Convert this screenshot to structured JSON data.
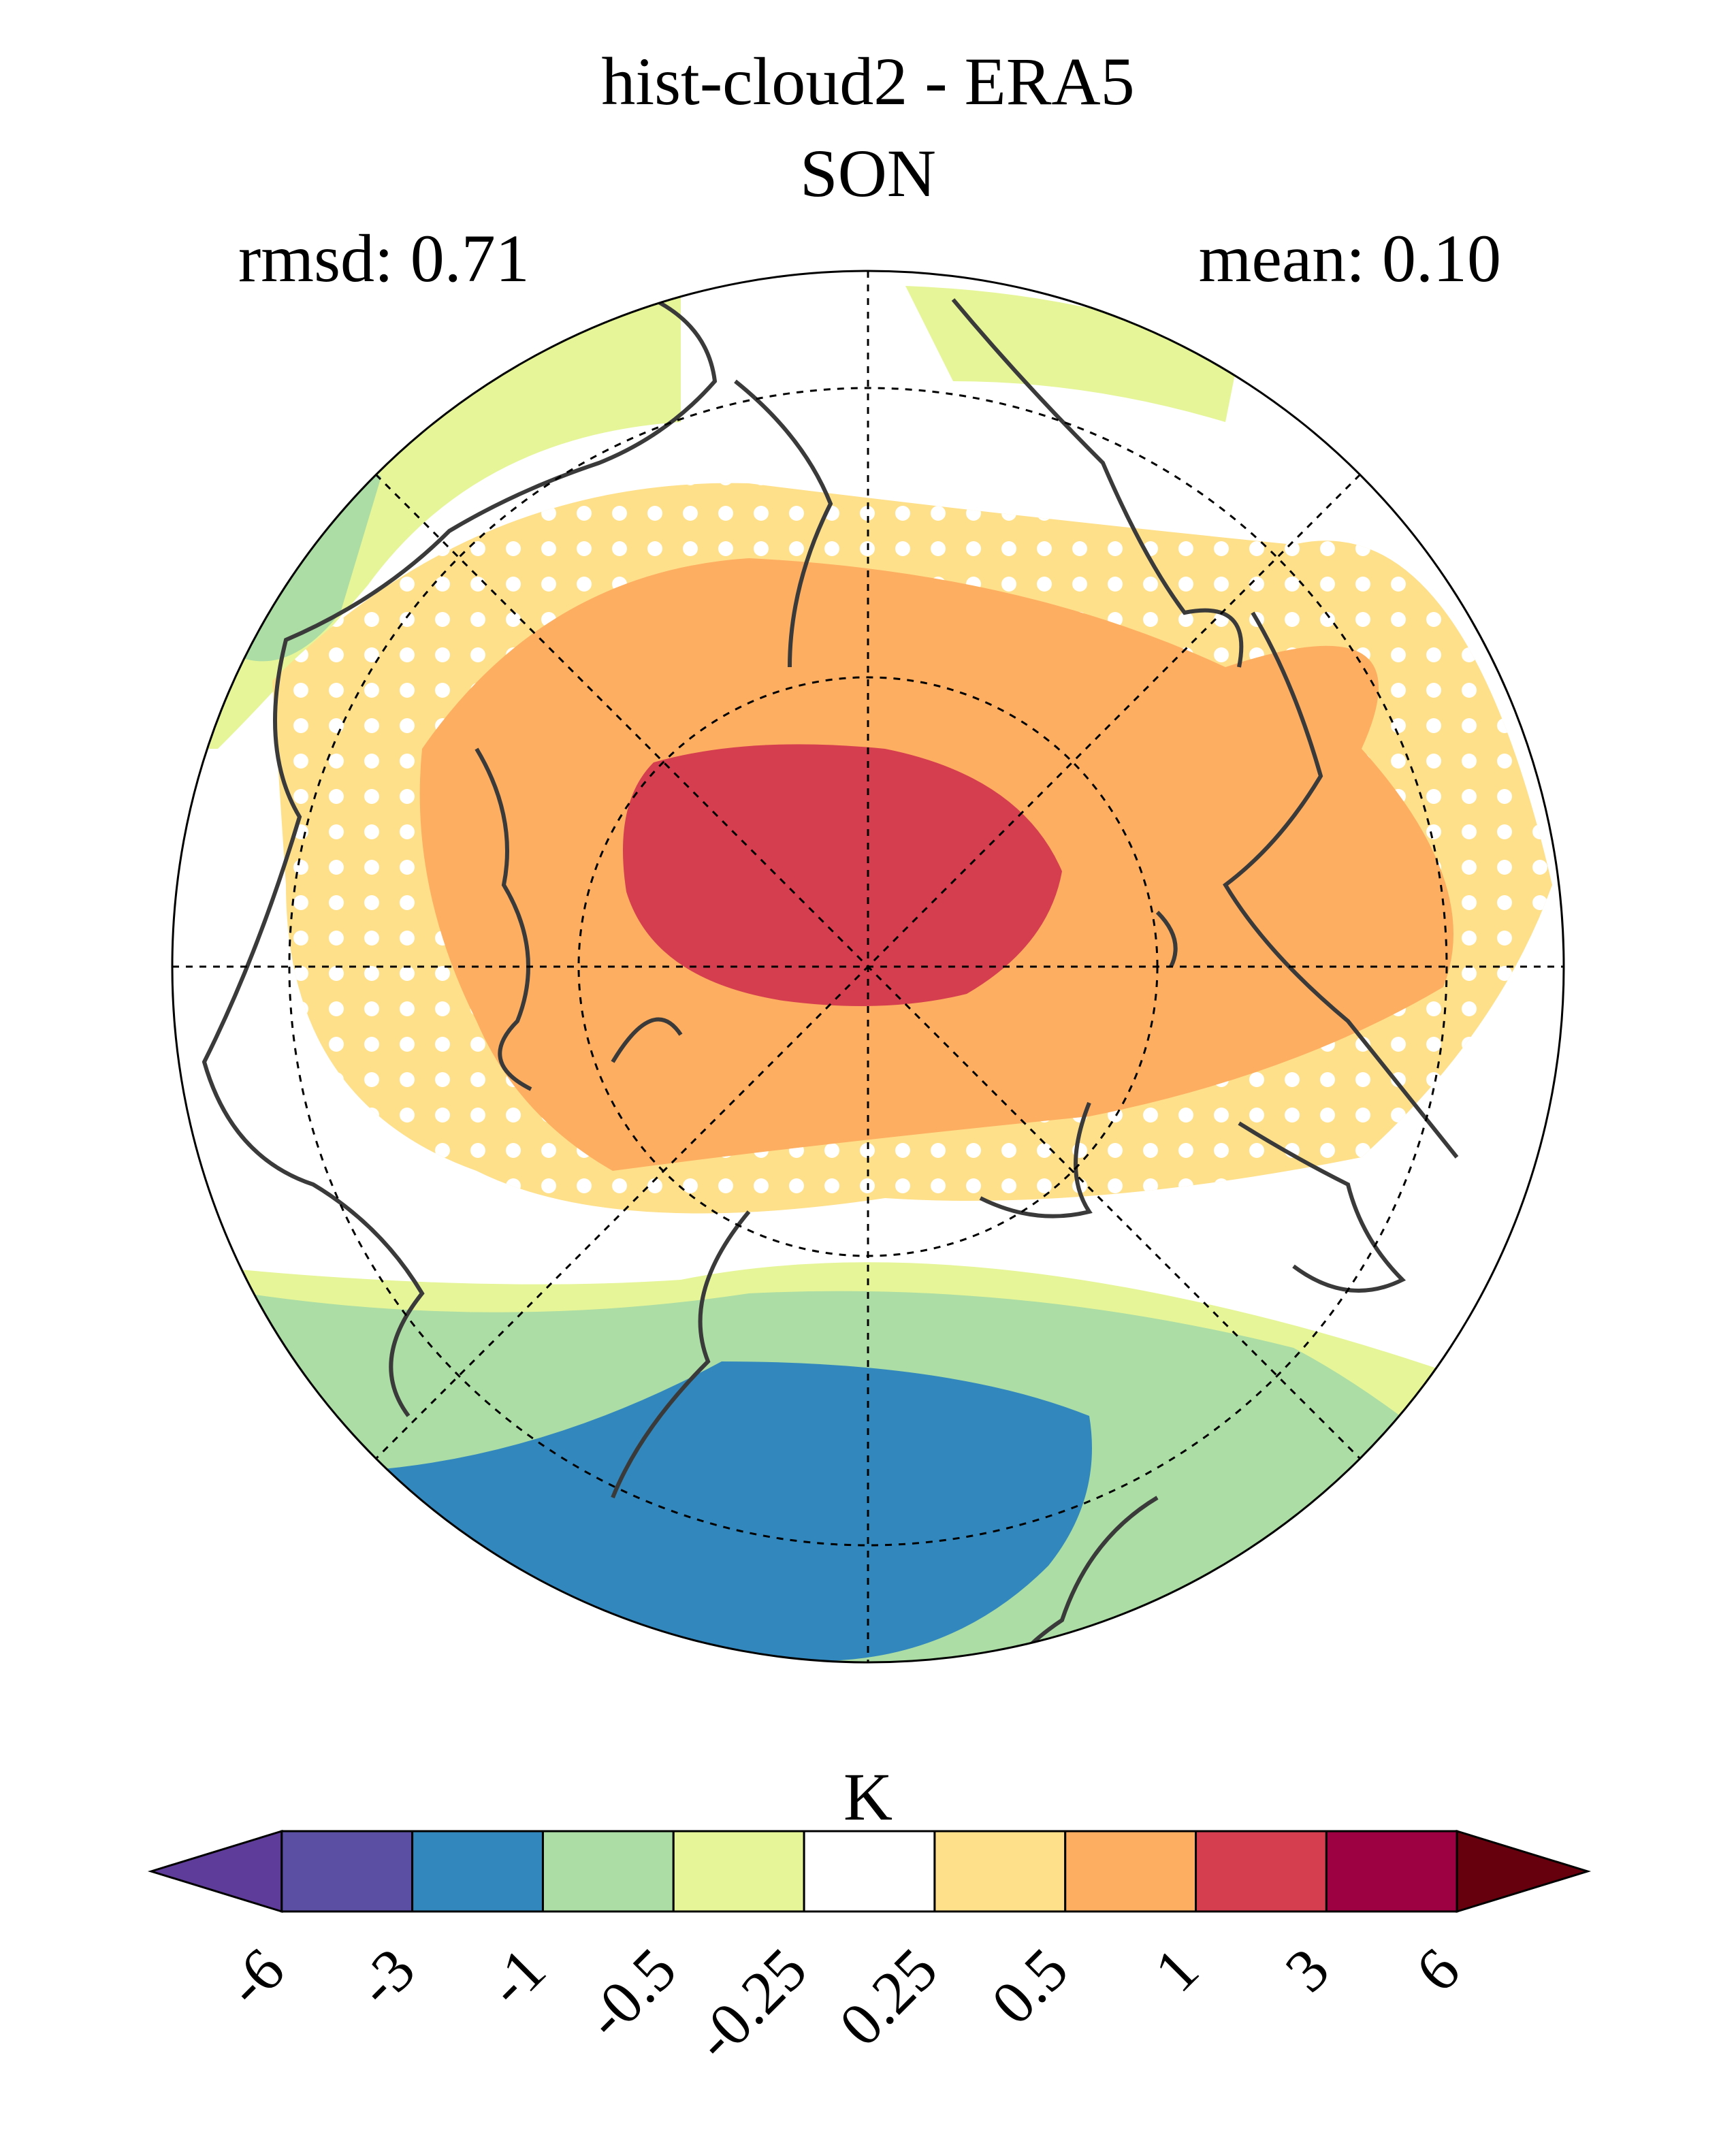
{
  "title": {
    "line1": "hist-cloud2 - ERA5",
    "line2": "SON"
  },
  "stats": {
    "rmsd": "rmsd: 0.71",
    "mean": "mean: 0.10"
  },
  "colorbar": {
    "units": "K",
    "ticks": [
      "-6",
      "-3",
      "-1",
      "-0.5",
      "-0.25",
      "0.25",
      "0.5",
      "1",
      "3",
      "6"
    ],
    "colors": [
      "#5e3c99",
      "#5a4fa3",
      "#3288bd",
      "#abdda4",
      "#e6f598",
      "#ffffff",
      "#fee08b",
      "#fdae61",
      "#d53e4f",
      "#9e0142",
      "#67000d"
    ],
    "extend": "both"
  },
  "map": {
    "projection": "north polar stereographic",
    "stippling": "white dots"
  }
}
